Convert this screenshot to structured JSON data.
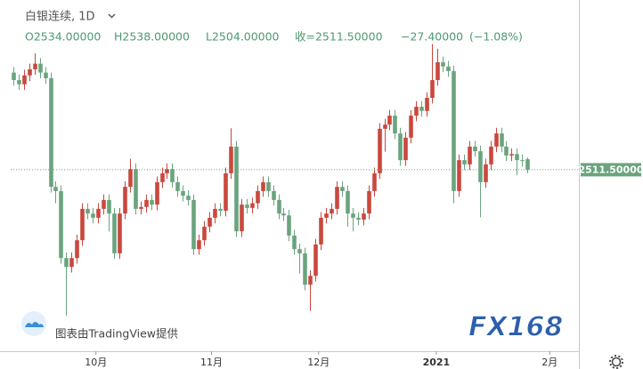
{
  "chart_data": {
    "type": "candlestick",
    "title": "白银连续, 1D",
    "ohlc_line": [
      "O2534.00000",
      "H2538.00000",
      "L2504.00000",
      "收=2511.50000",
      "−27.40000",
      "(−1.08%)"
    ],
    "watermark": "图表由TradingView提供",
    "logo": "FX168",
    "up_color": "#c9483d",
    "down_color": "#6aa47e",
    "xlim": [
      -2.5,
      106.7
    ],
    "ylim": [
      2124,
      2874
    ],
    "xticks": [
      {
        "value": 15.6,
        "label": "10月"
      },
      {
        "value": 37.4,
        "label": "11月"
      },
      {
        "value": 57.6,
        "label": "12月"
      },
      {
        "value": 79.8,
        "label": "2021"
      },
      {
        "value": 101.2,
        "label": "2月"
      }
    ],
    "last_price": {
      "value": 2511.5,
      "label": "2511.50000"
    },
    "open": [
      2719,
      2703,
      2694,
      2713,
      2726,
      2738,
      2719,
      2707,
      2475,
      2466,
      2323,
      2304,
      2323,
      2361,
      2428,
      2418,
      2409,
      2428,
      2447,
      2418,
      2333,
      2418,
      2475,
      2513,
      2428,
      2432,
      2447,
      2437,
      2485,
      2504,
      2513,
      2485,
      2466,
      2456,
      2447,
      2342,
      2361,
      2390,
      2409,
      2428,
      2424,
      2504,
      2561,
      2380,
      2437,
      2430,
      2440,
      2466,
      2485,
      2466,
      2447,
      2418,
      2414,
      2371,
      2342,
      2333,
      2266,
      2285,
      2352,
      2409,
      2418,
      2428,
      2475,
      2466,
      2418,
      2409,
      2405,
      2418,
      2466,
      2504,
      2599,
      2608,
      2627,
      2589,
      2532,
      2580,
      2627,
      2646,
      2637,
      2665,
      2703,
      2741,
      2732,
      2722,
      2466,
      2532,
      2523,
      2561,
      2551,
      2485,
      2523,
      2561,
      2589,
      2561,
      2542,
      2545,
      2532,
      2534
    ],
    "high": [
      2731,
      2715,
      2725,
      2738,
      2760,
      2750,
      2731,
      2719,
      2487,
      2478,
      2335,
      2335,
      2373,
      2440,
      2440,
      2430,
      2440,
      2459,
      2459,
      2430,
      2430,
      2487,
      2535,
      2525,
      2444,
      2459,
      2459,
      2497,
      2516,
      2525,
      2525,
      2497,
      2478,
      2468,
      2459,
      2373,
      2402,
      2421,
      2440,
      2440,
      2516,
      2600,
      2573,
      2449,
      2449,
      2452,
      2478,
      2497,
      2497,
      2478,
      2459,
      2430,
      2426,
      2383,
      2354,
      2345,
      2297,
      2364,
      2421,
      2430,
      2440,
      2487,
      2487,
      2478,
      2430,
      2421,
      2430,
      2478,
      2516,
      2611,
      2620,
      2639,
      2639,
      2601,
      2592,
      2639,
      2658,
      2658,
      2677,
      2780,
      2770,
      2753,
      2744,
      2734,
      2544,
      2544,
      2573,
      2573,
      2563,
      2535,
      2573,
      2601,
      2601,
      2573,
      2557,
      2557,
      2544,
      2538
    ],
    "low": [
      2691,
      2682,
      2682,
      2701,
      2714,
      2707,
      2695,
      2463,
      2440,
      2311,
      2200,
      2292,
      2311,
      2349,
      2406,
      2397,
      2397,
      2416,
      2380,
      2321,
      2321,
      2406,
      2463,
      2416,
      2416,
      2420,
      2425,
      2425,
      2473,
      2492,
      2473,
      2454,
      2444,
      2435,
      2330,
      2330,
      2349,
      2378,
      2397,
      2412,
      2412,
      2492,
      2368,
      2368,
      2418,
      2418,
      2428,
      2454,
      2454,
      2435,
      2406,
      2402,
      2359,
      2330,
      2290,
      2254,
      2210,
      2273,
      2340,
      2397,
      2406,
      2416,
      2454,
      2390,
      2380,
      2393,
      2393,
      2406,
      2454,
      2492,
      2550,
      2596,
      2577,
      2520,
      2520,
      2568,
      2615,
      2625,
      2625,
      2653,
      2691,
      2720,
      2710,
      2440,
      2454,
      2511,
      2511,
      2539,
      2410,
      2473,
      2511,
      2549,
      2549,
      2530,
      2530,
      2500,
      2518,
      2504
    ],
    "close": [
      2703,
      2694,
      2713,
      2726,
      2738,
      2719,
      2707,
      2475,
      2466,
      2323,
      2304,
      2323,
      2361,
      2428,
      2418,
      2409,
      2428,
      2447,
      2418,
      2333,
      2418,
      2475,
      2513,
      2428,
      2432,
      2447,
      2437,
      2485,
      2504,
      2513,
      2485,
      2466,
      2456,
      2447,
      2342,
      2361,
      2390,
      2409,
      2428,
      2424,
      2504,
      2561,
      2380,
      2437,
      2430,
      2440,
      2466,
      2485,
      2466,
      2447,
      2418,
      2414,
      2371,
      2342,
      2333,
      2266,
      2285,
      2352,
      2409,
      2418,
      2428,
      2475,
      2466,
      2418,
      2409,
      2405,
      2418,
      2466,
      2504,
      2599,
      2608,
      2627,
      2589,
      2532,
      2580,
      2627,
      2646,
      2637,
      2665,
      2703,
      2741,
      2732,
      2722,
      2466,
      2532,
      2523,
      2561,
      2551,
      2485,
      2523,
      2561,
      2589,
      2561,
      2542,
      2545,
      2532,
      2530,
      2511.5
    ]
  }
}
